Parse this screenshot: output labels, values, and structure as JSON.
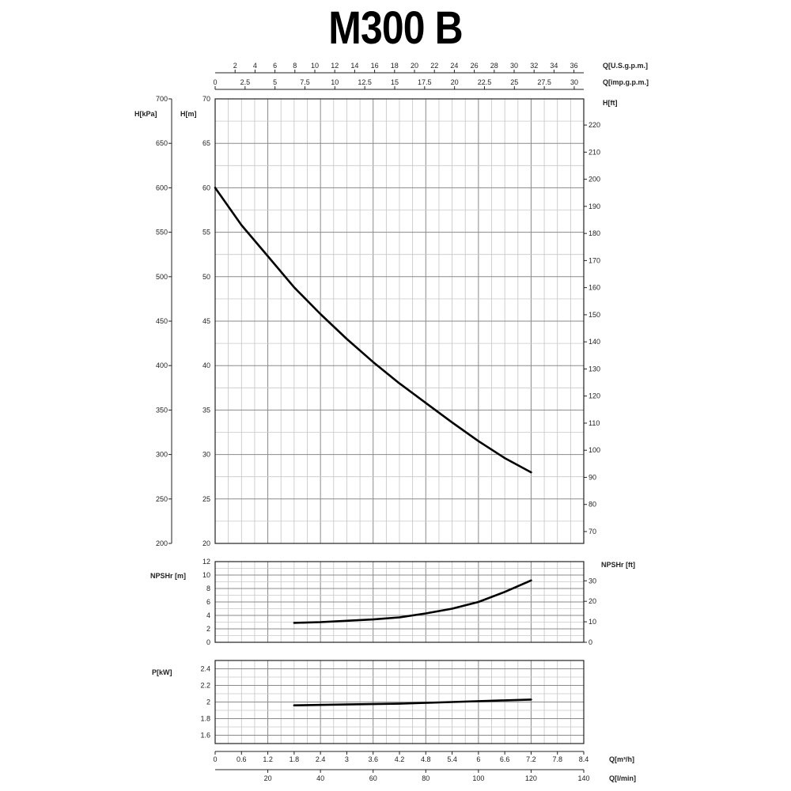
{
  "chart_data": {
    "title": "M300 B",
    "top_axes": [
      {
        "label": "Q[U.S.g.p.m.]",
        "ticks": [
          2,
          4,
          6,
          8,
          10,
          12,
          14,
          16,
          18,
          20,
          22,
          24,
          26,
          28,
          30,
          32,
          34,
          36
        ],
        "factor": 0.227125
      },
      {
        "label": "Q[imp.g.p.m.]",
        "ticks": [
          0,
          2.5,
          5,
          7.5,
          10,
          12.5,
          15,
          17.5,
          20,
          22.5,
          25,
          27.5,
          30
        ],
        "factor": 0.272765
      }
    ],
    "bottom_axes": [
      {
        "label": "Q[m³/h]",
        "ticks": [
          0,
          0.6,
          1.2,
          1.8,
          2.4,
          3,
          3.6,
          4.2,
          4.8,
          5.4,
          6,
          6.6,
          7.2,
          7.8,
          8.4
        ],
        "factor": 1
      },
      {
        "label": "Q[l/min]",
        "ticks": [
          20,
          40,
          60,
          80,
          100,
          120,
          140
        ],
        "factor": 0.06
      }
    ],
    "x_range": [
      0,
      8.4
    ],
    "x_unit": "Q[m³/h]",
    "head": {
      "type": "line",
      "ylabel": "H[m]",
      "ylim": [
        20,
        70
      ],
      "yticks": [
        20,
        25,
        30,
        35,
        40,
        45,
        50,
        55,
        60,
        65,
        70
      ],
      "left_outer_label": "H[kPa]",
      "left_outer_ticks": [
        200,
        250,
        300,
        350,
        400,
        450,
        500,
        550,
        600,
        650,
        700
      ],
      "left_outer_factor": 0.1,
      "right_label": "H[ft]",
      "right_ticks": [
        70,
        80,
        90,
        100,
        110,
        120,
        130,
        140,
        150,
        160,
        170,
        180,
        190,
        200,
        210,
        220
      ],
      "right_factor": 0.3048,
      "series": [
        {
          "x": [
            0,
            0.6,
            1.2,
            1.8,
            2.4,
            3.0,
            3.6,
            4.2,
            4.8,
            5.4,
            6.0,
            6.6,
            7.2
          ],
          "y": [
            60,
            55.8,
            52.3,
            48.8,
            45.8,
            43.0,
            40.4,
            38.0,
            35.8,
            33.6,
            31.5,
            29.6,
            28.0
          ]
        }
      ]
    },
    "npsh": {
      "type": "line",
      "ylabel": "NPSHr [m]",
      "ylim": [
        0,
        12
      ],
      "yticks": [
        0,
        2,
        4,
        6,
        8,
        10,
        12
      ],
      "right_label": "NPSHr [ft]",
      "right_ticks": [
        0,
        10,
        20,
        30
      ],
      "right_factor": 0.3048,
      "series": [
        {
          "x": [
            1.8,
            2.4,
            3.0,
            3.6,
            4.2,
            4.8,
            5.4,
            6.0,
            6.6,
            7.2
          ],
          "y": [
            2.9,
            3.0,
            3.2,
            3.4,
            3.7,
            4.3,
            5.0,
            6.0,
            7.5,
            9.2
          ]
        }
      ]
    },
    "power": {
      "type": "line",
      "ylabel": "P[kW]",
      "ylim": [
        1.5,
        2.5
      ],
      "yticks": [
        1.6,
        1.8,
        2,
        2.2,
        2.4
      ],
      "series": [
        {
          "x": [
            1.8,
            3.0,
            4.2,
            5.4,
            6.6,
            7.2
          ],
          "y": [
            1.96,
            1.97,
            1.98,
            2.0,
            2.02,
            2.03
          ]
        }
      ]
    }
  }
}
